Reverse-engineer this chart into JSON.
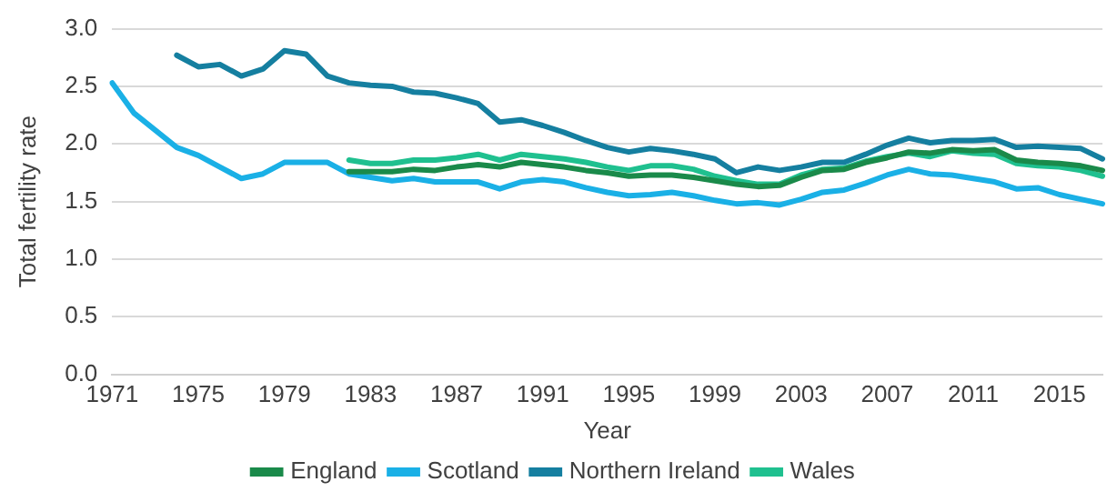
{
  "chart_data": {
    "type": "line",
    "xlabel": "Year",
    "ylabel": "Total fertility rate",
    "categories": [
      "1971",
      null,
      null,
      null,
      "1975",
      null,
      null,
      null,
      "1979",
      null,
      null,
      null,
      "1983",
      null,
      null,
      null,
      "1987",
      null,
      null,
      null,
      "1991",
      null,
      null,
      null,
      "1995",
      null,
      null,
      null,
      "1999",
      null,
      null,
      null,
      "2003",
      null,
      null,
      null,
      "2007",
      null,
      null,
      null,
      "2011",
      null,
      null,
      null,
      "2015",
      null,
      null
    ],
    "ylim": [
      0,
      3
    ],
    "yticks": [
      {
        "value": 0,
        "label": "0.0"
      },
      {
        "value": 0.5,
        "label": "0.5"
      },
      {
        "value": 1,
        "label": "1.0"
      },
      {
        "value": 1.5,
        "label": "1.5"
      },
      {
        "value": 2,
        "label": "2.0"
      },
      {
        "value": 2.5,
        "label": "2.5"
      },
      {
        "value": 3,
        "label": "3.0"
      }
    ],
    "grid": "y",
    "legend": "bottom",
    "marker": "none",
    "line_style": "solid",
    "series": [
      {
        "name": "England",
        "color": "#1a8a4a",
        "values": [
          null,
          null,
          null,
          null,
          null,
          null,
          null,
          null,
          null,
          null,
          null,
          1.76,
          1.76,
          1.76,
          1.78,
          1.77,
          1.8,
          1.82,
          1.8,
          1.84,
          1.82,
          1.8,
          1.77,
          1.75,
          1.72,
          1.73,
          1.73,
          1.71,
          1.68,
          1.65,
          1.63,
          1.64,
          1.71,
          1.77,
          1.78,
          1.84,
          1.88,
          1.93,
          1.92,
          1.95,
          1.94,
          1.95,
          1.86,
          1.84,
          1.83,
          1.81,
          1.77
        ]
      },
      {
        "name": "Scotland",
        "color": "#1ab0e6",
        "values": [
          2.53,
          2.27,
          2.12,
          1.97,
          1.9,
          1.8,
          1.7,
          1.74,
          1.84,
          1.84,
          1.84,
          1.74,
          1.71,
          1.68,
          1.7,
          1.67,
          1.67,
          1.67,
          1.61,
          1.67,
          1.69,
          1.67,
          1.62,
          1.58,
          1.55,
          1.56,
          1.58,
          1.55,
          1.51,
          1.48,
          1.49,
          1.47,
          1.52,
          1.58,
          1.6,
          1.66,
          1.73,
          1.78,
          1.74,
          1.73,
          1.7,
          1.67,
          1.61,
          1.62,
          1.56,
          1.52,
          1.48
        ]
      },
      {
        "name": "Northern Ireland",
        "color": "#157fa0",
        "values": [
          null,
          null,
          null,
          2.77,
          2.67,
          2.69,
          2.59,
          2.65,
          2.81,
          2.78,
          2.59,
          2.53,
          2.51,
          2.5,
          2.45,
          2.44,
          2.4,
          2.35,
          2.19,
          2.21,
          2.16,
          2.1,
          2.03,
          1.97,
          1.93,
          1.96,
          1.94,
          1.91,
          1.87,
          1.75,
          1.8,
          1.77,
          1.8,
          1.84,
          1.84,
          1.91,
          1.99,
          2.05,
          2.01,
          2.03,
          2.03,
          2.04,
          1.97,
          1.98,
          1.97,
          1.96,
          1.87
        ]
      },
      {
        "name": "Wales",
        "color": "#1fc08f",
        "values": [
          null,
          null,
          null,
          null,
          null,
          null,
          null,
          null,
          null,
          null,
          null,
          1.86,
          1.83,
          1.83,
          1.86,
          1.86,
          1.88,
          1.91,
          1.86,
          1.91,
          1.89,
          1.87,
          1.84,
          1.8,
          1.77,
          1.81,
          1.81,
          1.78,
          1.72,
          1.68,
          1.65,
          1.65,
          1.73,
          1.78,
          1.79,
          1.85,
          1.89,
          1.92,
          1.89,
          1.94,
          1.92,
          1.91,
          1.83,
          1.81,
          1.8,
          1.77,
          1.72
        ]
      }
    ]
  }
}
